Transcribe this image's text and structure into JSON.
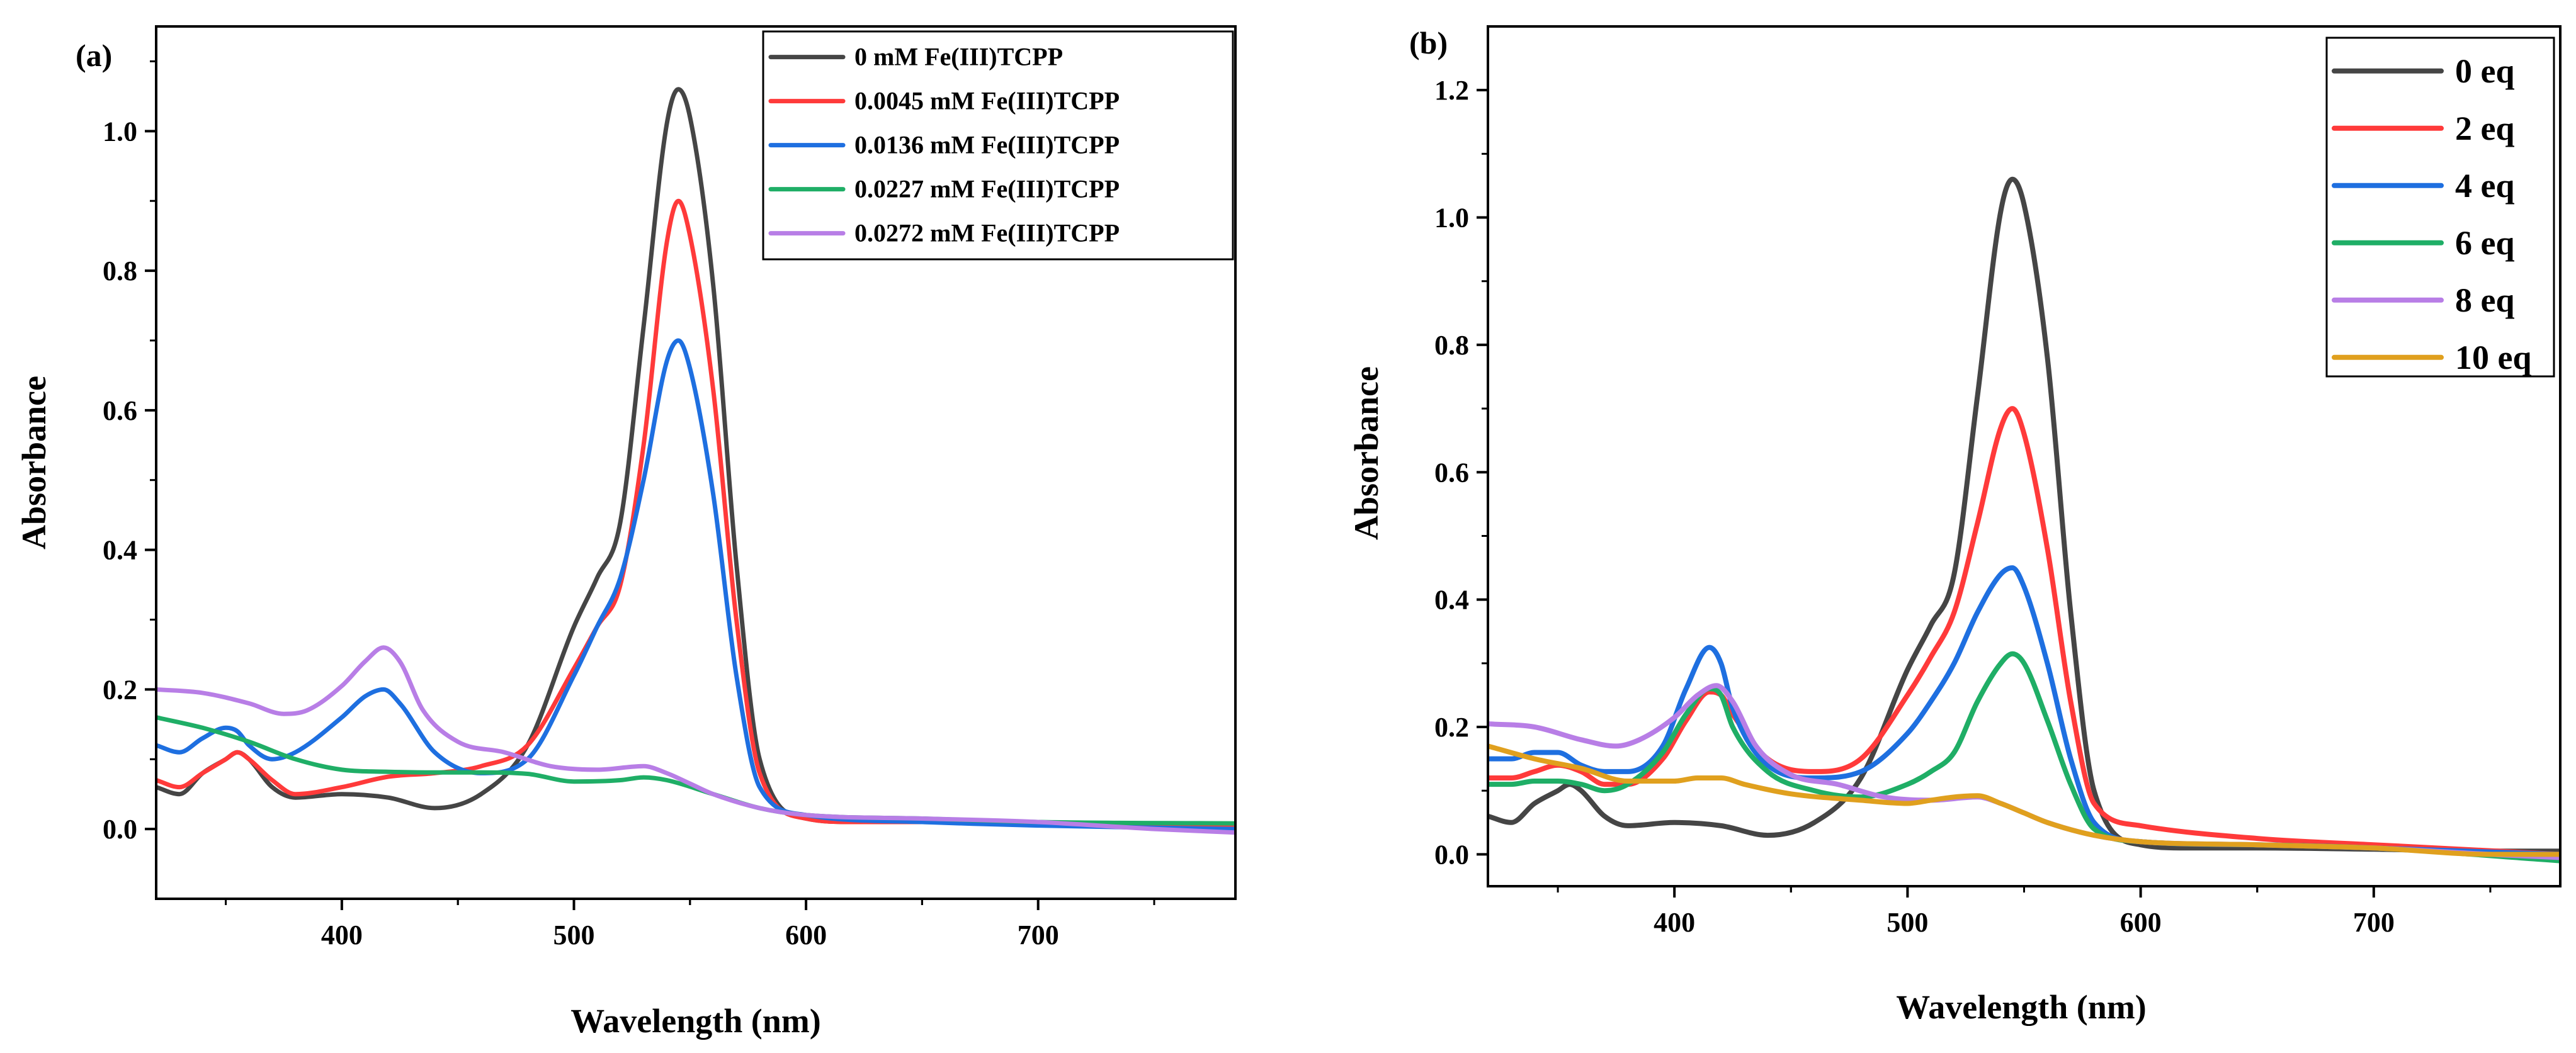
{
  "chart_data": [
    {
      "type": "line",
      "panel_label": "(a)",
      "xlabel": "Wavelength (nm)",
      "ylabel": "Absorbance",
      "xlim": [
        320,
        785
      ],
      "ylim": [
        -0.1,
        1.15
      ],
      "xticks": [
        400,
        500,
        600,
        700
      ],
      "yticks": [
        0.0,
        0.2,
        0.4,
        0.6,
        0.8,
        1.0
      ],
      "ytick_labels": [
        "0.0",
        "0.2",
        "0.4",
        "0.6",
        "0.8",
        "1.0"
      ],
      "legend_position": "top-right",
      "series": [
        {
          "name": "0 mM Fe(III)TCPP",
          "color": "#454545",
          "x": [
            320,
            330,
            340,
            350,
            355,
            360,
            370,
            380,
            400,
            420,
            440,
            460,
            480,
            500,
            510,
            520,
            530,
            540,
            545,
            550,
            560,
            570,
            580,
            600,
            620,
            650,
            700,
            750,
            785
          ],
          "y": [
            0.06,
            0.05,
            0.08,
            0.1,
            0.11,
            0.1,
            0.06,
            0.045,
            0.05,
            0.045,
            0.03,
            0.05,
            0.12,
            0.29,
            0.36,
            0.44,
            0.72,
            1.01,
            1.06,
            1.02,
            0.78,
            0.38,
            0.1,
            0.015,
            0.01,
            0.01,
            0.008,
            0.005,
            0.005
          ]
        },
        {
          "name": "0.0045 mM Fe(III)TCPP",
          "color": "#ff3a3a",
          "x": [
            320,
            330,
            340,
            350,
            355,
            360,
            370,
            380,
            400,
            420,
            440,
            460,
            480,
            500,
            510,
            520,
            530,
            540,
            545,
            550,
            560,
            570,
            580,
            600,
            620,
            650,
            700,
            750,
            785
          ],
          "y": [
            0.07,
            0.06,
            0.08,
            0.1,
            0.11,
            0.1,
            0.07,
            0.05,
            0.06,
            0.075,
            0.08,
            0.09,
            0.12,
            0.23,
            0.29,
            0.35,
            0.55,
            0.84,
            0.9,
            0.85,
            0.63,
            0.3,
            0.08,
            0.015,
            0.01,
            0.01,
            0.008,
            0.005,
            0.005
          ]
        },
        {
          "name": "0.0136 mM Fe(III)TCPP",
          "color": "#1e6fe0",
          "x": [
            320,
            330,
            340,
            350,
            355,
            360,
            370,
            380,
            400,
            410,
            418,
            425,
            440,
            460,
            480,
            500,
            510,
            520,
            530,
            540,
            545,
            550,
            560,
            570,
            580,
            600,
            650,
            700,
            785
          ],
          "y": [
            0.12,
            0.11,
            0.13,
            0.145,
            0.14,
            0.12,
            0.1,
            0.11,
            0.16,
            0.19,
            0.2,
            0.18,
            0.11,
            0.08,
            0.1,
            0.22,
            0.29,
            0.36,
            0.5,
            0.67,
            0.7,
            0.66,
            0.48,
            0.22,
            0.06,
            0.02,
            0.01,
            0.005,
            0.0
          ]
        },
        {
          "name": "0.0227 mM Fe(III)TCPP",
          "color": "#1fae66",
          "x": [
            320,
            340,
            360,
            380,
            400,
            420,
            440,
            460,
            480,
            500,
            520,
            530,
            540,
            560,
            580,
            600,
            650,
            700,
            785
          ],
          "y": [
            0.16,
            0.145,
            0.125,
            0.1,
            0.085,
            0.082,
            0.081,
            0.081,
            0.079,
            0.068,
            0.07,
            0.074,
            0.07,
            0.05,
            0.03,
            0.02,
            0.015,
            0.01,
            0.008
          ]
        },
        {
          "name": "0.0272 mM Fe(III)TCPP",
          "color": "#b87ee6",
          "x": [
            320,
            340,
            360,
            375,
            385,
            400,
            410,
            418,
            425,
            435,
            450,
            470,
            490,
            510,
            530,
            540,
            550,
            560,
            580,
            600,
            650,
            700,
            750,
            785
          ],
          "y": [
            0.2,
            0.195,
            0.18,
            0.165,
            0.17,
            0.205,
            0.24,
            0.26,
            0.24,
            0.17,
            0.125,
            0.11,
            0.09,
            0.085,
            0.09,
            0.08,
            0.065,
            0.05,
            0.03,
            0.02,
            0.015,
            0.01,
            0.0,
            -0.005
          ]
        }
      ]
    },
    {
      "type": "line",
      "panel_label": "(b)",
      "xlabel": "Wavelength (nm)",
      "ylabel": "Absorbance",
      "xlim": [
        320,
        780
      ],
      "ylim": [
        -0.05,
        1.3
      ],
      "xticks": [
        400,
        500,
        600,
        700
      ],
      "yticks": [
        0.0,
        0.2,
        0.4,
        0.6,
        0.8,
        1.0,
        1.2
      ],
      "ytick_labels": [
        "0.0",
        "0.2",
        "0.4",
        "0.6",
        "0.8",
        "1.0",
        "1.2"
      ],
      "legend_position": "top-right",
      "series": [
        {
          "name": "0 eq",
          "color": "#454545",
          "x": [
            320,
            330,
            340,
            350,
            355,
            360,
            370,
            380,
            400,
            420,
            440,
            460,
            480,
            500,
            510,
            520,
            530,
            540,
            545,
            550,
            560,
            570,
            580,
            600,
            620,
            650,
            700,
            750,
            780
          ],
          "y": [
            0.06,
            0.05,
            0.08,
            0.1,
            0.11,
            0.1,
            0.06,
            0.045,
            0.05,
            0.045,
            0.03,
            0.05,
            0.12,
            0.29,
            0.36,
            0.44,
            0.72,
            1.01,
            1.06,
            1.02,
            0.78,
            0.38,
            0.1,
            0.015,
            0.01,
            0.01,
            0.008,
            0.005,
            0.005
          ]
        },
        {
          "name": "2 eq",
          "color": "#ff3a3a",
          "x": [
            320,
            330,
            340,
            350,
            360,
            370,
            380,
            395,
            405,
            415,
            420,
            425,
            440,
            460,
            480,
            500,
            510,
            520,
            530,
            540,
            545,
            550,
            560,
            570,
            580,
            600,
            650,
            700,
            780
          ],
          "y": [
            0.12,
            0.12,
            0.13,
            0.14,
            0.13,
            0.11,
            0.11,
            0.15,
            0.21,
            0.255,
            0.25,
            0.22,
            0.15,
            0.13,
            0.15,
            0.25,
            0.31,
            0.38,
            0.52,
            0.67,
            0.7,
            0.66,
            0.48,
            0.24,
            0.08,
            0.045,
            0.025,
            0.015,
            0.0
          ]
        },
        {
          "name": "4 eq",
          "color": "#1e6fe0",
          "x": [
            320,
            330,
            340,
            350,
            360,
            370,
            380,
            395,
            405,
            415,
            420,
            425,
            440,
            460,
            480,
            500,
            510,
            520,
            530,
            540,
            545,
            550,
            560,
            570,
            580,
            600,
            650,
            700,
            780
          ],
          "y": [
            0.15,
            0.15,
            0.16,
            0.16,
            0.14,
            0.13,
            0.13,
            0.17,
            0.26,
            0.325,
            0.3,
            0.23,
            0.14,
            0.12,
            0.13,
            0.19,
            0.24,
            0.3,
            0.38,
            0.44,
            0.45,
            0.42,
            0.3,
            0.15,
            0.05,
            0.02,
            0.015,
            0.01,
            0.0
          ]
        },
        {
          "name": "6 eq",
          "color": "#1fae66",
          "x": [
            320,
            330,
            340,
            350,
            360,
            370,
            380,
            395,
            405,
            415,
            420,
            425,
            440,
            460,
            480,
            500,
            510,
            520,
            530,
            540,
            545,
            550,
            560,
            570,
            580,
            600,
            650,
            700,
            780
          ],
          "y": [
            0.11,
            0.11,
            0.115,
            0.115,
            0.11,
            0.1,
            0.11,
            0.16,
            0.22,
            0.26,
            0.25,
            0.2,
            0.13,
            0.1,
            0.09,
            0.11,
            0.13,
            0.16,
            0.24,
            0.3,
            0.315,
            0.3,
            0.21,
            0.11,
            0.04,
            0.02,
            0.015,
            0.01,
            -0.01
          ]
        },
        {
          "name": "8 eq",
          "color": "#b87ee6",
          "x": [
            320,
            340,
            360,
            375,
            385,
            400,
            410,
            418,
            425,
            435,
            450,
            470,
            490,
            510,
            530,
            540,
            550,
            560,
            580,
            600,
            650,
            700,
            750,
            780
          ],
          "y": [
            0.205,
            0.2,
            0.18,
            0.17,
            0.18,
            0.215,
            0.25,
            0.265,
            0.24,
            0.17,
            0.125,
            0.11,
            0.09,
            0.085,
            0.09,
            0.08,
            0.065,
            0.05,
            0.03,
            0.02,
            0.015,
            0.01,
            0.0,
            -0.005
          ]
        },
        {
          "name": "10 eq",
          "color": "#e0a01e",
          "x": [
            320,
            340,
            360,
            380,
            400,
            410,
            420,
            430,
            450,
            480,
            500,
            510,
            520,
            530,
            540,
            550,
            560,
            580,
            600,
            650,
            700,
            750,
            780
          ],
          "y": [
            0.17,
            0.15,
            0.135,
            0.115,
            0.115,
            0.12,
            0.12,
            0.11,
            0.095,
            0.085,
            0.08,
            0.085,
            0.09,
            0.092,
            0.08,
            0.065,
            0.05,
            0.03,
            0.02,
            0.015,
            0.01,
            0.0,
            0.0
          ]
        }
      ]
    }
  ]
}
